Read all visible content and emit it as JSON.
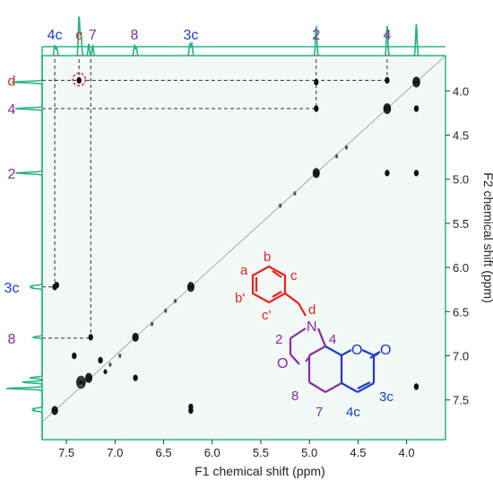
{
  "chart_data": {
    "type": "scatter",
    "subtype": "2D NMR COSY contour plot with 1D projections",
    "x_axis": {
      "label": "F1 chemical shift (ppm)",
      "range": [
        7.75,
        3.6
      ],
      "reversed": true,
      "ticks": [
        7.5,
        7.0,
        6.5,
        6.0,
        5.5,
        5.0,
        4.5,
        4.0
      ],
      "tick_labels": [
        "7.5",
        "7.0",
        "6.5",
        "6.0",
        "5.5",
        "5.0",
        "4.5",
        "4.0"
      ]
    },
    "y_axis": {
      "label": "F2 chemical shift (ppm)",
      "range": [
        3.6,
        7.95
      ],
      "reversed": true,
      "ticks": [
        4.0,
        4.5,
        5.0,
        5.5,
        6.0,
        6.5,
        7.0,
        7.5
      ],
      "tick_labels": [
        "4.0",
        "4.5",
        "5.0",
        "5.5",
        "6.0",
        "6.5",
        "7.0",
        "7.5"
      ]
    },
    "top_labels": [
      {
        "text": "4c",
        "ppm": 7.62,
        "color": "#1a3ccf"
      },
      {
        "text": "c",
        "ppm": 7.37,
        "color": "#e8221f"
      },
      {
        "text": "7",
        "ppm": 7.23,
        "color": "#8a2ba8"
      },
      {
        "text": "8",
        "ppm": 6.8,
        "color": "#8a2ba8"
      },
      {
        "text": "3c",
        "ppm": 6.22,
        "color": "#1a3ccf"
      },
      {
        "text": "2",
        "ppm": 4.93,
        "color": "#8a2ba8"
      },
      {
        "text": "4",
        "ppm": 4.2,
        "color": "#8a2ba8"
      }
    ],
    "left_labels": [
      {
        "text": "d",
        "ppm": 3.88,
        "color": "#e8221f"
      },
      {
        "text": "4",
        "ppm": 4.2,
        "color": "#8a2ba8"
      },
      {
        "text": "2",
        "ppm": 4.93,
        "color": "#8a2ba8"
      },
      {
        "text": "3c",
        "ppm": 6.22,
        "color": "#1a3ccf"
      },
      {
        "text": "8",
        "ppm": 6.8,
        "color": "#8a2ba8"
      }
    ],
    "top_projection_peaks": [
      {
        "ppm": 7.62,
        "h": 0.25
      },
      {
        "ppm": 7.6,
        "h": 0.2
      },
      {
        "ppm": 7.37,
        "h": 1.0
      },
      {
        "ppm": 7.35,
        "h": 0.55
      },
      {
        "ppm": 7.27,
        "h": 0.3
      },
      {
        "ppm": 7.23,
        "h": 0.25
      },
      {
        "ppm": 6.8,
        "h": 0.25
      },
      {
        "ppm": 6.78,
        "h": 0.2
      },
      {
        "ppm": 6.23,
        "h": 0.3
      },
      {
        "ppm": 6.21,
        "h": 0.3
      },
      {
        "ppm": 4.93,
        "h": 0.75
      },
      {
        "ppm": 4.2,
        "h": 0.75
      },
      {
        "ppm": 3.9,
        "h": 0.8
      }
    ],
    "left_projection_peaks": [
      {
        "ppm": 3.9,
        "h": 0.85
      },
      {
        "ppm": 4.2,
        "h": 0.75
      },
      {
        "ppm": 4.93,
        "h": 0.75
      },
      {
        "ppm": 6.21,
        "h": 0.3
      },
      {
        "ppm": 6.23,
        "h": 0.3
      },
      {
        "ppm": 6.79,
        "h": 0.25
      },
      {
        "ppm": 7.25,
        "h": 0.35
      },
      {
        "ppm": 7.3,
        "h": 0.55
      },
      {
        "ppm": 7.37,
        "h": 1.0
      },
      {
        "ppm": 7.6,
        "h": 0.25
      },
      {
        "ppm": 7.62,
        "h": 0.25
      }
    ],
    "diagonal_peaks": [
      {
        "x": 7.62,
        "y": 7.62,
        "size": 1.0
      },
      {
        "x": 7.35,
        "y": 7.3,
        "size": 1.5
      },
      {
        "x": 7.27,
        "y": 7.25,
        "size": 1.1
      },
      {
        "x": 7.1,
        "y": 7.18,
        "size": 0.5
      },
      {
        "x": 6.79,
        "y": 6.79,
        "size": 1.0
      },
      {
        "x": 6.22,
        "y": 6.22,
        "size": 1.1
      },
      {
        "x": 4.93,
        "y": 4.93,
        "size": 1.1
      },
      {
        "x": 4.2,
        "y": 4.2,
        "size": 1.2
      },
      {
        "x": 3.9,
        "y": 3.9,
        "size": 1.2
      }
    ],
    "cross_peaks": [
      {
        "x": 7.62,
        "y": 6.22
      },
      {
        "x": 7.6,
        "y": 6.2
      },
      {
        "x": 6.22,
        "y": 7.62
      },
      {
        "x": 6.22,
        "y": 7.58
      },
      {
        "x": 7.25,
        "y": 6.79
      },
      {
        "x": 6.79,
        "y": 7.25
      },
      {
        "x": 7.37,
        "y": 3.88
      },
      {
        "x": 4.93,
        "y": 3.9
      },
      {
        "x": 4.93,
        "y": 4.2
      },
      {
        "x": 4.2,
        "y": 3.88
      },
      {
        "x": 4.2,
        "y": 4.93
      },
      {
        "x": 3.9,
        "y": 4.93
      },
      {
        "x": 3.9,
        "y": 4.2
      },
      {
        "x": 3.9,
        "y": 7.35
      },
      {
        "x": 7.42,
        "y": 7.0
      },
      {
        "x": 7.15,
        "y": 7.05
      }
    ],
    "diagonal_dots": [
      {
        "x": 7.05,
        "y": 7.1
      },
      {
        "x": 6.95,
        "y": 7.0
      },
      {
        "x": 6.62,
        "y": 6.64
      },
      {
        "x": 6.48,
        "y": 6.49
      },
      {
        "x": 6.38,
        "y": 6.38
      },
      {
        "x": 5.3,
        "y": 5.3
      },
      {
        "x": 5.15,
        "y": 5.16
      },
      {
        "x": 4.72,
        "y": 4.74
      },
      {
        "x": 4.62,
        "y": 4.64
      }
    ],
    "structure_labels": {
      "a": "a",
      "b": "b",
      "c": "c",
      "b_prime": "b'",
      "c_prime": "c'",
      "d": "d",
      "N": "N",
      "O_ring": "O",
      "O_lactone": "O",
      "O_carbonyl": "O",
      "pos2": "2",
      "pos4": "4",
      "pos8": "8",
      "pos7": "7",
      "pos4c": "4c",
      "pos3c": "3c"
    },
    "colors": {
      "projection": "#22b381",
      "axis_frame": "#2db38a",
      "plot_background": "#f2f8f5",
      "contour": "#111111",
      "dashed": "#333333",
      "highlight_circle": "#e8221f",
      "red": "#e8221f",
      "purple": "#8a2ba8",
      "blue": "#1a3ccf"
    }
  }
}
